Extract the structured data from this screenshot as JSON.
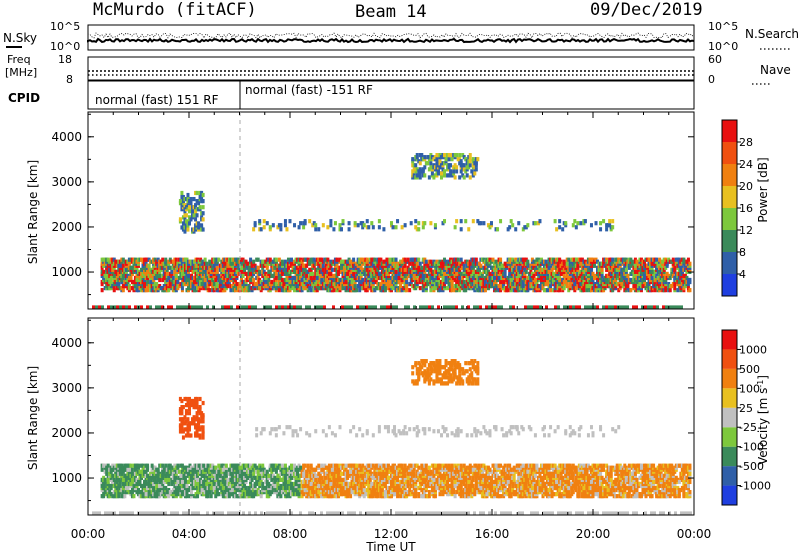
{
  "header": {
    "station": "McMurdo (fitACF)",
    "beam": "Beam 14",
    "date": "09/Dec/2019"
  },
  "strip_labels": {
    "nsky": "N.Sky",
    "nsearch": "N.Search",
    "freq_line1": "Freq",
    "freq_line2": "[MHz]",
    "nave": "Nave",
    "cpid": "CPID",
    "exp_10_5": "10^5",
    "exp_10_0": "10^0",
    "freq_top": "18",
    "freq_bottom": "8",
    "nave_top": "60",
    "nave_bottom": "0"
  },
  "cpid": {
    "mode_1": "normal (fast) 151 RF",
    "mode_2": "normal (fast) -151 RF"
  },
  "colors": {
    "power": [
      "#1f3fe0",
      "#2f5fa8",
      "#3a8a5a",
      "#7dc83c",
      "#e8c020",
      "#f08010",
      "#f05010",
      "#e81010"
    ],
    "velocity": [
      "#e81010",
      "#f05010",
      "#f08010",
      "#e8c020",
      "#c0c0c0",
      "#7dc83c",
      "#3a8a5a",
      "#2f5fa8",
      "#1f3fe0"
    ]
  },
  "chart_data": [
    {
      "type": "heatmap",
      "name": "power",
      "xlabel": "",
      "ylabel": "Slant Range [km]",
      "x_ticks": [
        "00:00",
        "04:00",
        "08:00",
        "12:00",
        "16:00",
        "20:00",
        "00:00"
      ],
      "y_ticks": [
        "1000",
        "2000",
        "3000",
        "4000"
      ],
      "ylim": [
        180,
        4550
      ],
      "colorbar_label": "Power [dB]",
      "colorbar_ticks": [
        "4",
        "8",
        "12",
        "16",
        "20",
        "24",
        "28"
      ],
      "grid": false,
      "scatter_bands": [
        {
          "t0": 0.5,
          "t1": 23.8,
          "r0": 600,
          "r1": 1300
        },
        {
          "t0": 3.6,
          "t1": 4.5,
          "r0": 1900,
          "r1": 2800
        },
        {
          "t0": 12.8,
          "t1": 15.4,
          "r0": 3100,
          "r1": 3600
        },
        {
          "t0": 6.5,
          "t1": 21.0,
          "r0": 1950,
          "r1": 2150
        }
      ]
    },
    {
      "type": "heatmap",
      "name": "velocity",
      "xlabel": "Time UT",
      "ylabel": "Slant Range [km]",
      "x_ticks": [
        "00:00",
        "04:00",
        "08:00",
        "12:00",
        "16:00",
        "20:00",
        "00:00"
      ],
      "y_ticks": [
        "1000",
        "2000",
        "3000",
        "4000"
      ],
      "ylim": [
        180,
        4550
      ],
      "colorbar_label": "Velocity [m s",
      "colorbar_unit_exp": "-1",
      "colorbar_unit_close": "]",
      "colorbar_ticks": [
        "1000",
        "500",
        "100",
        "25",
        "-25",
        "-100",
        "-500",
        "-1000"
      ],
      "grid": false
    }
  ]
}
